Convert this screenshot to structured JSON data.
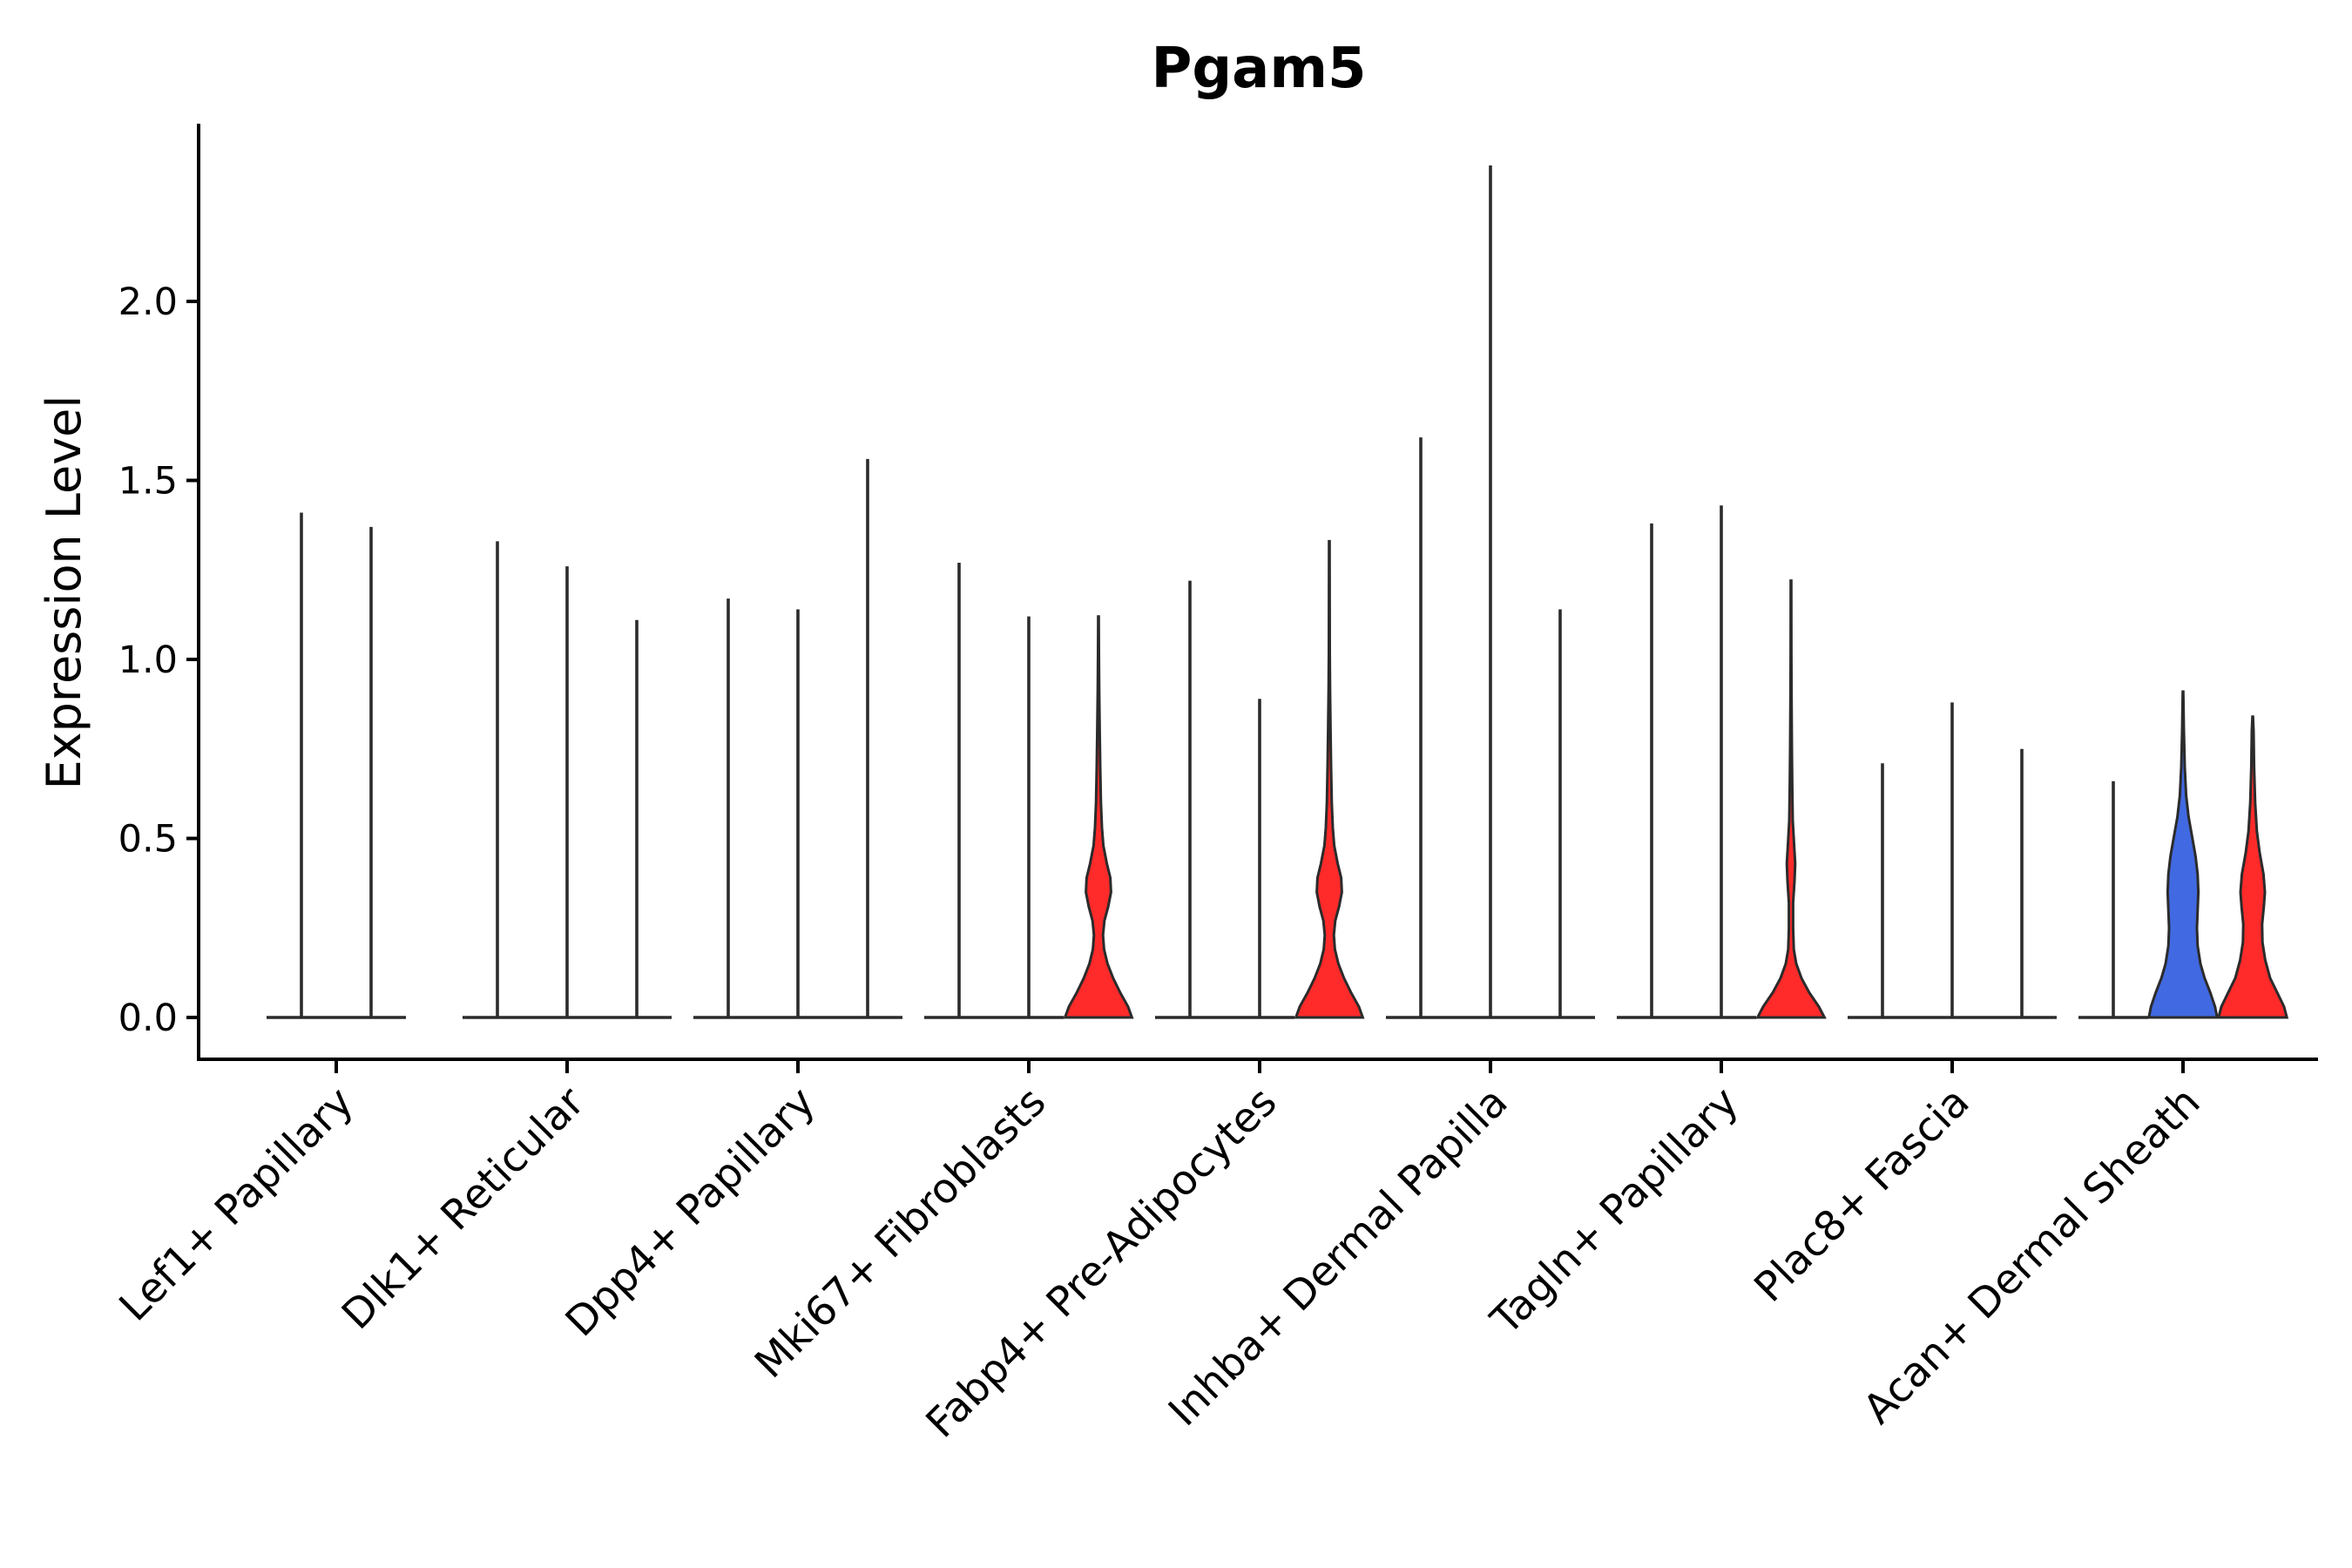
{
  "chart_data": {
    "type": "violin",
    "title": "Pgam5",
    "xlabel": "",
    "ylabel": "Expression Level",
    "ylim": [
      -0.12,
      2.5
    ],
    "yticks": [
      {
        "value": 0.0,
        "label": "0.0"
      },
      {
        "value": 0.5,
        "label": "0.5"
      },
      {
        "value": 1.0,
        "label": "1.0"
      },
      {
        "value": 1.5,
        "label": "1.5"
      },
      {
        "value": 2.0,
        "label": "2.0"
      }
    ],
    "grid": false,
    "legend": "none",
    "categories": [
      "Lef1+ Papillary",
      "Dlk1+ Reticular",
      "Dpp4+ Papillary",
      "Mki67+ Fibroblasts",
      "Fabp4+ Pre-Adipocytes",
      "Inhba+ Dermal Papilla",
      "Tagln+ Papillary",
      "Plac8+ Fascia",
      "Acan+ Dermal Sheath"
    ],
    "colors": {
      "blue": "#4169e1",
      "red": "#ff2a2a",
      "none": "#ffffff"
    },
    "groups": [
      {
        "category": "Lef1+ Papillary",
        "violins": [
          {
            "max": 1.41,
            "fill": "none",
            "shape": "flat"
          },
          {
            "max": 1.37,
            "fill": "none",
            "shape": "flat"
          }
        ]
      },
      {
        "category": "Dlk1+ Reticular",
        "violins": [
          {
            "max": 1.33,
            "fill": "none",
            "shape": "flat"
          },
          {
            "max": 1.26,
            "fill": "none",
            "shape": "flat"
          },
          {
            "max": 1.11,
            "fill": "none",
            "shape": "flat"
          }
        ]
      },
      {
        "category": "Dpp4+ Papillary",
        "violins": [
          {
            "max": 1.17,
            "fill": "none",
            "shape": "flat"
          },
          {
            "max": 1.14,
            "fill": "none",
            "shape": "flat"
          },
          {
            "max": 1.56,
            "fill": "none",
            "shape": "flat"
          }
        ]
      },
      {
        "category": "Mki67+ Fibroblasts",
        "violins": [
          {
            "max": 1.27,
            "fill": "none",
            "shape": "flat"
          },
          {
            "max": 1.12,
            "fill": "none",
            "shape": "flat"
          },
          {
            "max": 1.12,
            "fill": "red",
            "shape": "bimodal"
          }
        ]
      },
      {
        "category": "Fabp4+ Pre-Adipocytes",
        "violins": [
          {
            "max": 1.22,
            "fill": "none",
            "shape": "flat"
          },
          {
            "max": 0.89,
            "fill": "none",
            "shape": "flat"
          },
          {
            "max": 1.33,
            "fill": "red",
            "shape": "bimodal"
          }
        ]
      },
      {
        "category": "Inhba+ Dermal Papilla",
        "violins": [
          {
            "max": 1.62,
            "fill": "none",
            "shape": "flat"
          },
          {
            "max": 2.38,
            "fill": "none",
            "shape": "flat"
          },
          {
            "max": 1.14,
            "fill": "none",
            "shape": "flat"
          }
        ]
      },
      {
        "category": "Tagln+ Papillary",
        "violins": [
          {
            "max": 1.38,
            "fill": "none",
            "shape": "flat"
          },
          {
            "max": 1.43,
            "fill": "none",
            "shape": "flat"
          },
          {
            "max": 1.22,
            "fill": "red",
            "shape": "bimodal-thin"
          }
        ]
      },
      {
        "category": "Plac8+ Fascia",
        "violins": [
          {
            "max": 0.71,
            "fill": "none",
            "shape": "flat"
          },
          {
            "max": 0.88,
            "fill": "none",
            "shape": "flat"
          },
          {
            "max": 0.75,
            "fill": "none",
            "shape": "flat"
          }
        ]
      },
      {
        "category": "Acan+ Dermal Sheath",
        "violins": [
          {
            "max": 0.66,
            "fill": "none",
            "shape": "flat"
          },
          {
            "max": 0.91,
            "fill": "blue",
            "shape": "wide"
          },
          {
            "max": 0.84,
            "fill": "red",
            "shape": "bimodal-wide"
          }
        ]
      }
    ]
  }
}
